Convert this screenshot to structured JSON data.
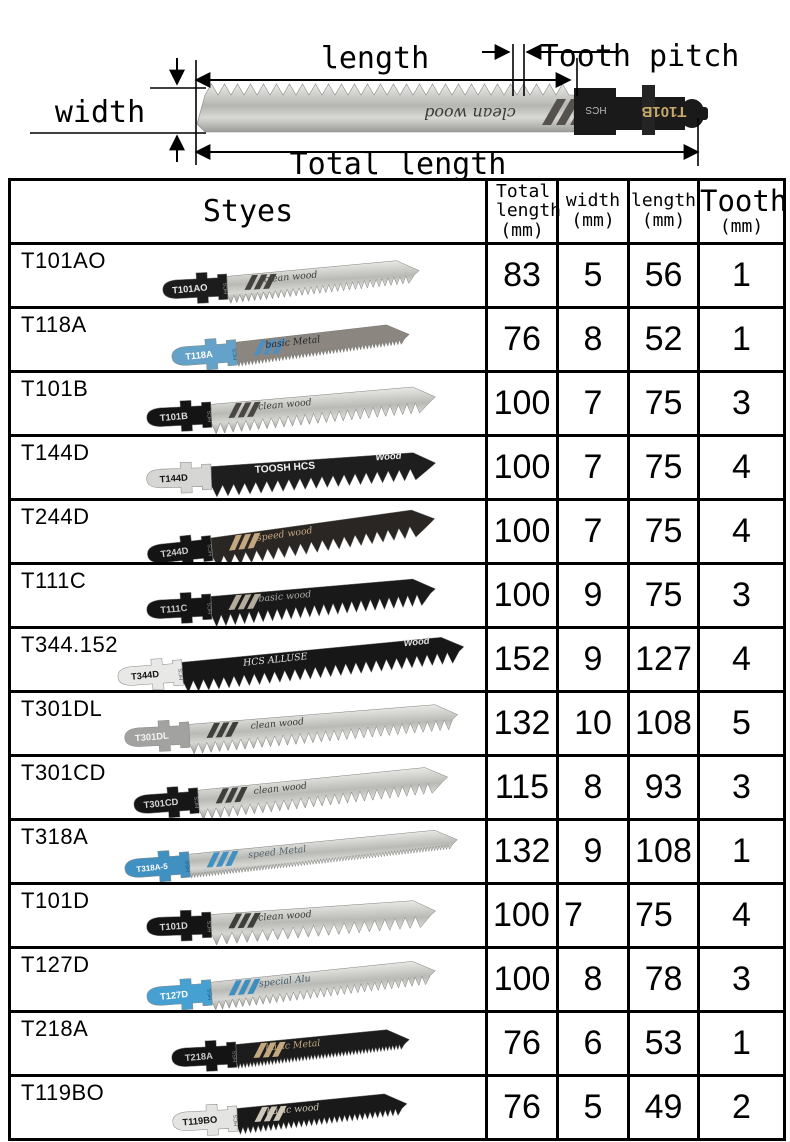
{
  "diagram": {
    "length_label": "length",
    "tooth_pitch_label": "Tooth pitch",
    "width_label": "width",
    "total_length_label": "Total length",
    "blade": {
      "shank_text": "T101B",
      "shank_sub": "HCS",
      "blade_text": "clean wood"
    }
  },
  "table": {
    "style_header": "Styes",
    "columns": [
      {
        "line1": "Total",
        "line2": "length",
        "unit": "(mm)"
      },
      {
        "line1": "width",
        "line2": "",
        "unit": "(mm)"
      },
      {
        "line1": "length",
        "line2": "",
        "unit": "(mm)"
      },
      {
        "line1": "Tooth",
        "line2": "",
        "unit": "(mm)"
      }
    ],
    "rows": [
      {
        "style": "T101AO",
        "total_length": 83,
        "width": 5,
        "length": 56,
        "tooth": 1,
        "blade": {
          "shank_color": "#1c1c1c",
          "shank_text": "T101AO",
          "shank_text_color": "#e8e8e8",
          "shank_sub": "HCS",
          "sub_color": "#9a9a9a",
          "blade_color": "#c6c6c2",
          "metal": true,
          "stripe": "#45423e",
          "blade_text": "clean wood",
          "text_color": "#3a3a38",
          "blade_text2": "",
          "pitch": 7,
          "len": 312,
          "tilt": -3
        }
      },
      {
        "style": "T118A",
        "total_length": 76,
        "width": 8,
        "length": 52,
        "tooth": 1,
        "blade": {
          "shank_color": "#64a2c9",
          "shank_text": "T118A",
          "shank_text_color": "#ffffff",
          "shank_sub": "HCS",
          "sub_color": "#2a5d80",
          "blade_color": "#8b8680",
          "metal": false,
          "stripe": "#4e8fc0",
          "blade_text": "basic Metal",
          "text_color": "#26262a",
          "blade_text2": "",
          "pitch": 4,
          "len": 290,
          "tilt": -4
        }
      },
      {
        "style": "T101B",
        "total_length": 100,
        "width": 7,
        "length": 75,
        "tooth": 3,
        "blade": {
          "shank_color": "#141414",
          "shank_text": "T101B",
          "shank_text_color": "#dcdcdc",
          "shank_sub": "HCS",
          "sub_color": "#9a9a9a",
          "blade_color": "#c0c0bc",
          "metal": true,
          "stripe": "#4a4742",
          "blade_text": "clean wood",
          "text_color": "#3a3a38",
          "blade_text2": "",
          "pitch": 10,
          "len": 350,
          "tilt": -3
        }
      },
      {
        "style": "T144D",
        "total_length": 100,
        "width": 7,
        "length": 75,
        "tooth": 4,
        "blade": {
          "shank_color": "#d6d6d4",
          "shank_text": "T144D",
          "shank_text_color": "#141414",
          "shank_sub": "",
          "sub_color": "",
          "blade_color": "#1e1e1e",
          "metal": false,
          "stripe": "",
          "blade_text": "TOOSH  HCS",
          "text_bold": true,
          "text_color": "#f2f2f2",
          "blade_text2": "Wood",
          "text2_color": "#f2f2f2",
          "pitch": 13,
          "len": 350,
          "tilt": -2
        }
      },
      {
        "style": "T244D",
        "total_length": 100,
        "width": 7,
        "length": 75,
        "tooth": 4,
        "blade": {
          "shank_color": "#141414",
          "shank_text": "T244D",
          "shank_text_color": "#cccccc",
          "shank_sub": "HCS",
          "sub_color": "#8a8a8a",
          "blade_color": "#2a2623",
          "metal": false,
          "stripe": "#c3a77f",
          "blade_text": "speed wood",
          "text_color": "#c3a77f",
          "blade_text2": "",
          "pitch": 13,
          "len": 350,
          "tilt": -6
        }
      },
      {
        "style": "T111C",
        "total_length": 100,
        "width": 9,
        "length": 75,
        "tooth": 3,
        "blade": {
          "shank_color": "#141414",
          "shank_text": "T111C",
          "shank_text_color": "#c4c4c4",
          "shank_sub": "HCS",
          "sub_color": "#8a8a8a",
          "blade_color": "#191919",
          "metal": false,
          "stripe": "#b5ab9c",
          "blade_text": "basic wood",
          "text_color": "#a8a8a4",
          "blade_text2": "",
          "pitch": 11,
          "len": 350,
          "tilt": -3
        }
      },
      {
        "style": "T344.152",
        "total_length": 152,
        "width": 9,
        "length": 127,
        "tooth": 4,
        "blade": {
          "shank_color": "#e8e8e6",
          "shank_text": "T344D",
          "shank_text_color": "#141414",
          "shank_sub": "HCS",
          "sub_color": "#555555",
          "blade_color": "#171717",
          "metal": false,
          "stripe": "",
          "blade_text": "HCS  ALLUSE",
          "text_color": "#e0e0de",
          "blade_text2": "Wood",
          "text2_color": "#e0e0de",
          "pitch": 12,
          "len": 418,
          "tilt": -4
        }
      },
      {
        "style": "T301DL",
        "total_length": 132,
        "width": 10,
        "length": 108,
        "tooth": 5,
        "blade": {
          "shank_color": "#a2a2a0",
          "shank_text": "T301DL",
          "shank_text_color": "#f4f4f4",
          "shank_sub": "",
          "sub_color": "",
          "blade_color": "#c6c6c2",
          "metal": true,
          "stripe": "#3e3e3a",
          "blade_text": "clean wood",
          "text_color": "#3a3a38",
          "blade_text2": "",
          "pitch": 10,
          "len": 402,
          "tilt": -3
        }
      },
      {
        "style": "T301CD",
        "total_length": 115,
        "width": 8,
        "length": 93,
        "tooth": 3,
        "blade": {
          "shank_color": "#161616",
          "shank_text": "T301CD",
          "shank_text_color": "#d6d6d6",
          "shank_sub": "HCS",
          "sub_color": "#9a9a9a",
          "blade_color": "#c9c9c5",
          "metal": true,
          "stripe": "#3e3e3a",
          "blade_text": "clean wood",
          "text_color": "#3a3a38",
          "blade_text2": "",
          "pitch": 10,
          "len": 380,
          "tilt": -4
        }
      },
      {
        "style": "T318A",
        "total_length": 132,
        "width": 9,
        "length": 108,
        "tooth": 1,
        "blade": {
          "shank_color": "#4090c2",
          "shank_text": "T318A-5",
          "shank_text_color": "#ffffff",
          "shank_sub": "HSS",
          "sub_color": "#1e5a80",
          "blade_color": "#cbcbc7",
          "metal": true,
          "stripe": "#4090c2",
          "blade_text": "speed Metal",
          "text_color": "#55656e",
          "blade_text2": "",
          "pitch": 3.5,
          "len": 402,
          "tilt": -4
        }
      },
      {
        "style": "T101D",
        "total_length": 100,
        "width": 7,
        "length": 75,
        "tooth": 4,
        "align": "left",
        "blade": {
          "shank_color": "#141414",
          "shank_text": "T101D",
          "shank_text_color": "#d6d6d6",
          "shank_sub": "HCS",
          "sub_color": "#9a9a9a",
          "blade_color": "#c4c4c0",
          "metal": true,
          "stripe": "#3e3e3a",
          "blade_text": "clean wood",
          "text_color": "#3a3a38",
          "blade_text2": "",
          "pitch": 12,
          "len": 350,
          "tilt": -2
        }
      },
      {
        "style": "T127D",
        "total_length": 100,
        "width": 8,
        "length": 78,
        "tooth": 3,
        "blade": {
          "shank_color": "#46a0d2",
          "shank_text": "T127D",
          "shank_text_color": "#ffffff",
          "shank_sub": "HSS",
          "sub_color": "#1e5a80",
          "blade_color": "#d9d9d5",
          "metal": true,
          "stripe": "#3e8ec0",
          "blade_text": "special Alu",
          "text_color": "#3e5a6a",
          "blade_text2": "",
          "pitch": 8,
          "len": 350,
          "tilt": -4
        }
      },
      {
        "style": "T218A",
        "total_length": 76,
        "width": 6,
        "length": 53,
        "tooth": 1,
        "blade": {
          "shank_color": "#141414",
          "shank_text": "T218A",
          "shank_text_color": "#c8c8c8",
          "shank_sub": "HSS",
          "sub_color": "#8a8a8a",
          "blade_color": "#1c1c1c",
          "metal": false,
          "stripe": "#c3a77f",
          "blade_text": "basic Metal",
          "text_color": "#c3a77f",
          "blade_text2": "",
          "pitch": 4,
          "len": 290,
          "tilt": -3
        }
      },
      {
        "style": "T119BO",
        "total_length": 76,
        "width": 5,
        "length": 49,
        "tooth": 2,
        "blade": {
          "shank_color": "#e4e4e2",
          "shank_text": "T119BO",
          "shank_text_color": "#141414",
          "shank_sub": "HCS",
          "sub_color": "#555555",
          "blade_color": "#191919",
          "metal": false,
          "stripe": "#cfc7b8",
          "blade_text": "basic wood",
          "text_color": "#cfc7b8",
          "blade_text2": "",
          "pitch": 6,
          "len": 286,
          "tilt": -3
        }
      }
    ]
  }
}
